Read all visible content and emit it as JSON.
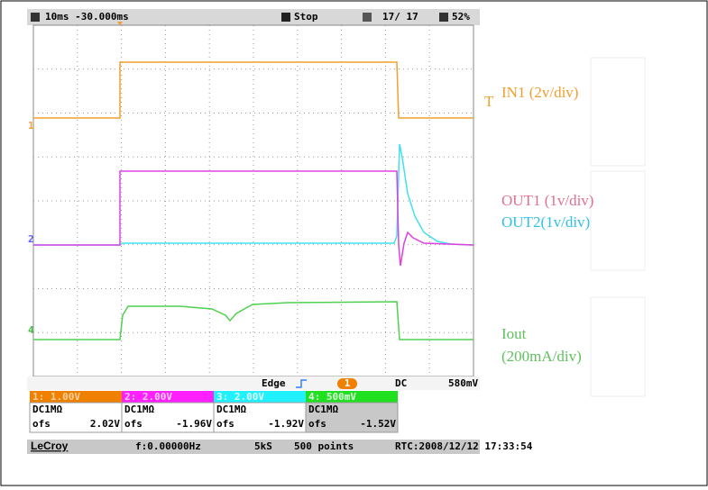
{
  "status_bar": {
    "timebase": "10ms -30.000ms",
    "state": "Stop",
    "count": "17/  17",
    "percent": "52%"
  },
  "markers": [
    "1",
    "2",
    "4"
  ],
  "trigger": {
    "mode": "Edge",
    "source": "1",
    "coupling": "DC",
    "level": "580mV"
  },
  "channels": [
    {
      "scale": "1: 1.00V",
      "coupling": "DC1MΩ",
      "ofs": "ofs",
      "offset": "2.02V"
    },
    {
      "scale": "2: 2.00V",
      "coupling": "DC1MΩ",
      "ofs": "ofs",
      "offset": "-1.96V"
    },
    {
      "scale": "3: 2.00V",
      "coupling": "DC1MΩ",
      "ofs": "ofs",
      "offset": "-1.92V"
    },
    {
      "scale": "4: 500mV",
      "coupling": "DC1MΩ",
      "ofs": "ofs",
      "offset": "-1.52V"
    }
  ],
  "footer": {
    "brand": "LeCroy",
    "frequency": "f:0.00000Hz",
    "rate": "5kS",
    "points": "500 points",
    "rtc": "RTC:2008/12/12 17:33:54"
  },
  "annotations": {
    "in1": "IN1 (2v/div)",
    "out1": "OUT1 (1v/div)",
    "out2": "OUT2(1v/div)",
    "iout": "Iout",
    "iout_scale": "(200mA/div)"
  }
}
